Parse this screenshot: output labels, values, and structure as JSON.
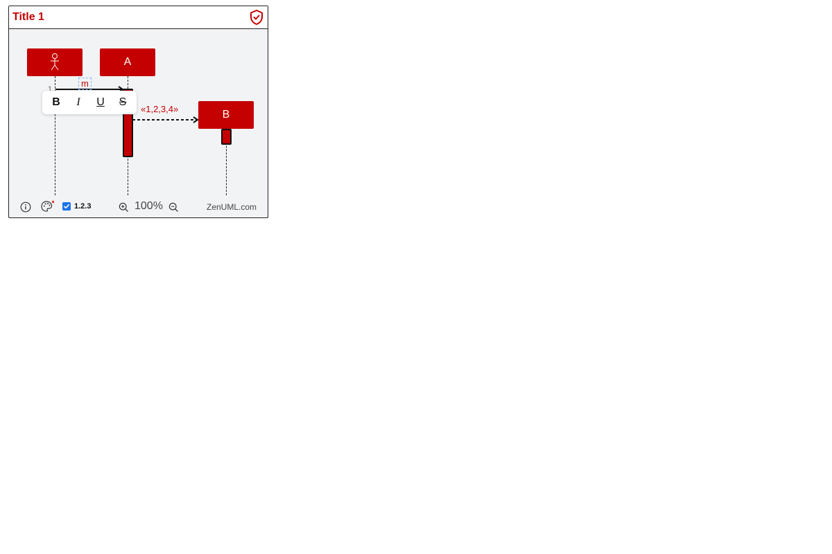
{
  "diagram": {
    "title": "Title 1",
    "participants": [
      {
        "id": "actor",
        "label": "",
        "kind": "actor"
      },
      {
        "id": "A",
        "label": "A",
        "kind": "participant"
      },
      {
        "id": "B",
        "label": "B",
        "kind": "participant"
      }
    ],
    "messages": [
      {
        "seq": "1",
        "from": "actor",
        "to": "A",
        "label": "m",
        "style": "sync",
        "editing": true
      },
      {
        "seq": "",
        "from": "A",
        "to": "B",
        "label": "«1,2,3,4»",
        "style": "creation-dashed"
      }
    ]
  },
  "format_toolbar": {
    "bold": "B",
    "italic": "I",
    "underline": "U",
    "strike": "S"
  },
  "footer": {
    "numbering_label": "1.2.3",
    "numbering_checked": true,
    "zoom": "100%",
    "brand": "ZenUML.com"
  },
  "colors": {
    "accent": "#c40000",
    "background": "#f2f3f5",
    "checkbox": "#1a73e8"
  },
  "icons": {
    "title": "shield-check-icon",
    "info": "info-icon",
    "theme": "palette-icon",
    "zoom_in": "zoom-in-icon",
    "zoom_out": "zoom-out-icon"
  }
}
